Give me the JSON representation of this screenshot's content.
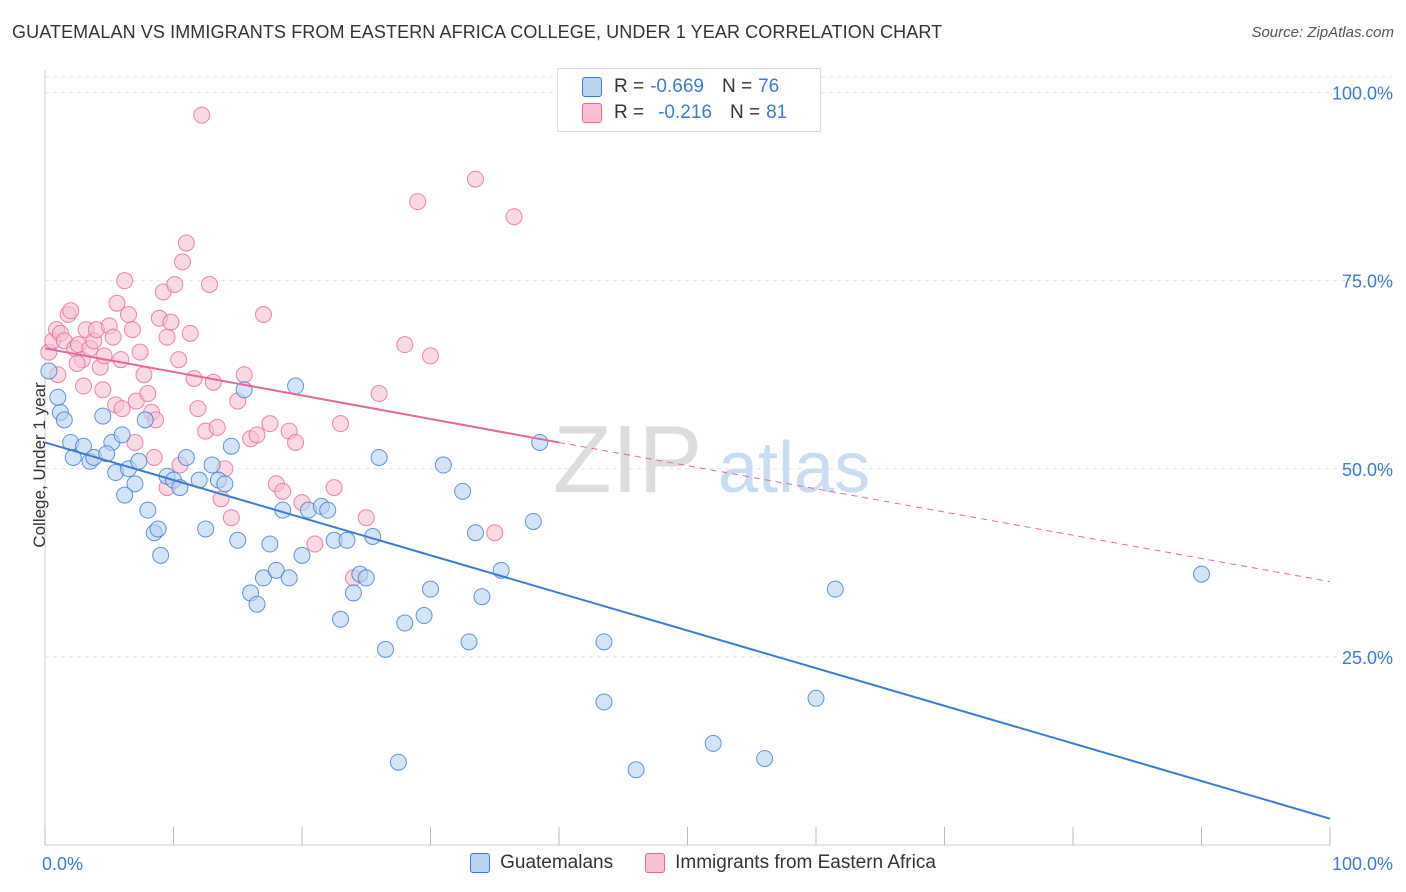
{
  "title": "GUATEMALAN VS IMMIGRANTS FROM EASTERN AFRICA COLLEGE, UNDER 1 YEAR CORRELATION CHART",
  "source": "Source: ZipAtlas.com",
  "watermark": {
    "zip": "ZIP",
    "atlas": "atlas"
  },
  "legend": {
    "r_label": "R =",
    "n_label": "N =",
    "guatemalan": {
      "r": "-0.669",
      "n": "76"
    },
    "eastern_africa": {
      "r": "-0.216",
      "n": "81"
    }
  },
  "colors": {
    "blue": "#3a7bd5",
    "blue_fill": "#b8d2f2",
    "pink": "#e8679a",
    "pink_fill": "#f7c0d2",
    "grid": "#e3e3e3",
    "axis_label": "#3a7bd5"
  },
  "chart_data": {
    "type": "scatter",
    "title": "GUATEMALAN VS IMMIGRANTS FROM EASTERN AFRICA COLLEGE, UNDER 1 YEAR CORRELATION CHART",
    "xlabel": "",
    "ylabel": "College, Under 1 year",
    "xlim": [
      0,
      100
    ],
    "ylim": [
      0,
      103
    ],
    "x_tick_labels": [
      "0.0%",
      "100.0%"
    ],
    "y_tick_labels": [
      "25.0%",
      "50.0%",
      "75.0%",
      "100.0%"
    ],
    "y_ticks": [
      25,
      50,
      75,
      100
    ],
    "grid": true,
    "legend_position": "top-center",
    "series": [
      {
        "name": "Guatemalans",
        "color": "#3a7bd5",
        "trend": {
          "x": [
            0,
            100
          ],
          "y": [
            53.5,
            3.5
          ]
        },
        "points": [
          [
            0.3,
            63.0
          ],
          [
            1.2,
            57.5
          ],
          [
            1.5,
            56.5
          ],
          [
            2.0,
            53.5
          ],
          [
            2.2,
            51.5
          ],
          [
            3.0,
            53.0
          ],
          [
            3.5,
            51.0
          ],
          [
            3.8,
            51.5
          ],
          [
            4.5,
            57.0
          ],
          [
            5.2,
            53.5
          ],
          [
            5.5,
            49.5
          ],
          [
            6.0,
            54.5
          ],
          [
            6.5,
            50.0
          ],
          [
            7.0,
            48.0
          ],
          [
            7.3,
            51.0
          ],
          [
            7.8,
            56.5
          ],
          [
            8.0,
            44.5
          ],
          [
            8.5,
            41.5
          ],
          [
            8.8,
            42.0
          ],
          [
            9.0,
            38.5
          ],
          [
            9.5,
            49.0
          ],
          [
            10.0,
            48.5
          ],
          [
            10.5,
            47.5
          ],
          [
            11.0,
            51.5
          ],
          [
            12.0,
            48.5
          ],
          [
            12.5,
            42.0
          ],
          [
            13.0,
            50.5
          ],
          [
            13.5,
            48.5
          ],
          [
            14.0,
            48.0
          ],
          [
            14.5,
            53.0
          ],
          [
            15.0,
            40.5
          ],
          [
            15.5,
            60.5
          ],
          [
            16.0,
            33.5
          ],
          [
            16.5,
            32.0
          ],
          [
            17.0,
            35.5
          ],
          [
            17.5,
            40.0
          ],
          [
            18.0,
            36.5
          ],
          [
            18.5,
            44.5
          ],
          [
            19.0,
            35.5
          ],
          [
            19.5,
            61.0
          ],
          [
            20.0,
            38.5
          ],
          [
            20.5,
            44.5
          ],
          [
            21.5,
            45.0
          ],
          [
            22.0,
            44.5
          ],
          [
            22.5,
            40.5
          ],
          [
            23.0,
            30.0
          ],
          [
            23.5,
            40.5
          ],
          [
            24.0,
            33.5
          ],
          [
            24.5,
            36.0
          ],
          [
            25.0,
            35.5
          ],
          [
            25.5,
            41.0
          ],
          [
            26.0,
            51.5
          ],
          [
            26.5,
            26.0
          ],
          [
            27.5,
            11.0
          ],
          [
            28.0,
            29.5
          ],
          [
            29.5,
            30.5
          ],
          [
            30.0,
            34.0
          ],
          [
            31.0,
            50.5
          ],
          [
            32.5,
            47.0
          ],
          [
            33.0,
            27.0
          ],
          [
            33.5,
            41.5
          ],
          [
            34.0,
            33.0
          ],
          [
            35.5,
            36.5
          ],
          [
            38.0,
            43.0
          ],
          [
            38.5,
            53.5
          ],
          [
            43.5,
            19.0
          ],
          [
            43.5,
            27.0
          ],
          [
            46.0,
            10.0
          ],
          [
            52.0,
            13.5
          ],
          [
            56.0,
            11.5
          ],
          [
            60.0,
            19.5
          ],
          [
            61.5,
            34.0
          ],
          [
            90.0,
            36.0
          ],
          [
            1.0,
            59.5
          ],
          [
            4.8,
            52.0
          ],
          [
            6.2,
            46.5
          ]
        ]
      },
      {
        "name": "Immigrants from Eastern Africa",
        "color": "#e8679a",
        "trend": {
          "x": [
            0,
            40
          ],
          "y": [
            66.0,
            53.5
          ]
        },
        "trend_dashed": {
          "x": [
            40,
            100
          ],
          "y": [
            53.5,
            35.0
          ]
        },
        "points": [
          [
            0.3,
            65.5
          ],
          [
            0.6,
            67.0
          ],
          [
            0.9,
            68.5
          ],
          [
            1.2,
            68.0
          ],
          [
            1.5,
            67.0
          ],
          [
            1.8,
            70.5
          ],
          [
            2.0,
            71.0
          ],
          [
            2.3,
            66.0
          ],
          [
            2.6,
            66.5
          ],
          [
            2.9,
            64.5
          ],
          [
            3.2,
            68.5
          ],
          [
            3.5,
            66.0
          ],
          [
            3.8,
            67.0
          ],
          [
            4.0,
            68.5
          ],
          [
            4.3,
            63.5
          ],
          [
            4.6,
            65.0
          ],
          [
            5.0,
            69.0
          ],
          [
            5.3,
            67.5
          ],
          [
            5.6,
            72.0
          ],
          [
            5.9,
            64.5
          ],
          [
            6.2,
            75.0
          ],
          [
            6.5,
            70.5
          ],
          [
            6.8,
            68.5
          ],
          [
            7.1,
            59.0
          ],
          [
            7.4,
            65.5
          ],
          [
            7.7,
            62.5
          ],
          [
            8.0,
            60.0
          ],
          [
            8.3,
            57.5
          ],
          [
            8.6,
            56.5
          ],
          [
            8.9,
            70.0
          ],
          [
            9.2,
            73.5
          ],
          [
            9.5,
            67.5
          ],
          [
            9.8,
            69.5
          ],
          [
            10.1,
            74.5
          ],
          [
            10.4,
            64.5
          ],
          [
            10.7,
            77.5
          ],
          [
            11.0,
            80.0
          ],
          [
            11.3,
            68.0
          ],
          [
            11.6,
            62.0
          ],
          [
            11.9,
            58.0
          ],
          [
            12.2,
            97.0
          ],
          [
            12.5,
            55.0
          ],
          [
            12.8,
            74.5
          ],
          [
            13.1,
            61.5
          ],
          [
            13.4,
            55.5
          ],
          [
            13.7,
            46.0
          ],
          [
            14.0,
            50.0
          ],
          [
            14.5,
            43.5
          ],
          [
            15.0,
            59.0
          ],
          [
            15.5,
            62.5
          ],
          [
            16.0,
            54.0
          ],
          [
            16.5,
            54.5
          ],
          [
            17.0,
            70.5
          ],
          [
            17.5,
            56.0
          ],
          [
            18.0,
            48.0
          ],
          [
            18.5,
            47.0
          ],
          [
            19.0,
            55.0
          ],
          [
            19.5,
            53.5
          ],
          [
            20.0,
            45.5
          ],
          [
            21.0,
            40.0
          ],
          [
            22.5,
            47.5
          ],
          [
            23.0,
            56.0
          ],
          [
            24.0,
            35.5
          ],
          [
            25.0,
            43.5
          ],
          [
            26.0,
            60.0
          ],
          [
            28.0,
            66.5
          ],
          [
            29.0,
            85.5
          ],
          [
            30.0,
            65.0
          ],
          [
            33.5,
            88.5
          ],
          [
            35.0,
            41.5
          ],
          [
            36.5,
            83.5
          ],
          [
            1.0,
            62.5
          ],
          [
            2.5,
            64.0
          ],
          [
            3.0,
            61.0
          ],
          [
            4.5,
            60.5
          ],
          [
            5.5,
            58.5
          ],
          [
            6.0,
            58.0
          ],
          [
            7.0,
            53.5
          ],
          [
            8.5,
            51.5
          ],
          [
            9.5,
            47.5
          ],
          [
            10.5,
            50.5
          ]
        ]
      }
    ]
  }
}
